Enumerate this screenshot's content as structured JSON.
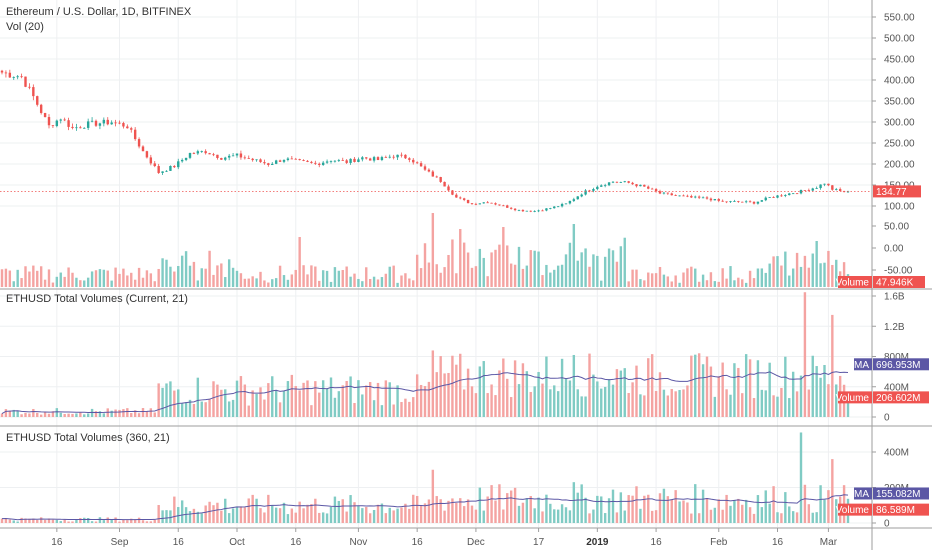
{
  "colors": {
    "up": "#26a69a",
    "down": "#ef5350",
    "up_vol": "#80cbc4",
    "down_vol": "#f4a3a1",
    "sma": "#5b57a5",
    "price_line": "#ef5350",
    "grid": "#eef0f2",
    "axis": "#555555"
  },
  "chart_data": [
    {
      "type": "candlestick",
      "title": "Ethereum / U.S. Dollar, 1D, BITFINEX",
      "volume_label": "Vol (20)",
      "ylim": [
        0,
        580
      ],
      "y_ticks": [
        "550.00",
        "500.00",
        "450.00",
        "400.00",
        "350.00",
        "300.00",
        "250.00",
        "200.00",
        "150.00",
        "100.00"
      ],
      "y_tick_values": [
        550,
        500,
        450,
        400,
        350,
        300,
        250,
        200,
        150,
        100
      ],
      "volume_ticks": [
        "50.00",
        "0.00",
        "-50.00"
      ],
      "volume_tick_values": [
        50,
        0,
        -50
      ],
      "last_price": 134.77,
      "last_price_label": "134.77",
      "last_volume_label": "47.946K",
      "volume_badge_text": "Volume",
      "price_anchors": [
        [
          0,
          418
        ],
        [
          5,
          408
        ],
        [
          8,
          360
        ],
        [
          12,
          290
        ],
        [
          15,
          310
        ],
        [
          18,
          285
        ],
        [
          22,
          295
        ],
        [
          28,
          300
        ],
        [
          32,
          290
        ],
        [
          36,
          230
        ],
        [
          40,
          180
        ],
        [
          44,
          195
        ],
        [
          48,
          225
        ],
        [
          52,
          230
        ],
        [
          56,
          215
        ],
        [
          60,
          220
        ],
        [
          64,
          210
        ],
        [
          68,
          200
        ],
        [
          72,
          212
        ],
        [
          76,
          205
        ],
        [
          80,
          200
        ],
        [
          84,
          210
        ],
        [
          88,
          205
        ],
        [
          92,
          215
        ],
        [
          96,
          210
        ],
        [
          100,
          220
        ],
        [
          104,
          215
        ],
        [
          108,
          185
        ],
        [
          112,
          160
        ],
        [
          116,
          120
        ],
        [
          120,
          105
        ],
        [
          124,
          110
        ],
        [
          128,
          100
        ],
        [
          132,
          90
        ],
        [
          136,
          88
        ],
        [
          140,
          95
        ],
        [
          144,
          105
        ],
        [
          148,
          130
        ],
        [
          152,
          148
        ],
        [
          156,
          158
        ],
        [
          160,
          155
        ],
        [
          164,
          145
        ],
        [
          168,
          130
        ],
        [
          172,
          125
        ],
        [
          176,
          120
        ],
        [
          180,
          118
        ],
        [
          184,
          110
        ],
        [
          188,
          110
        ],
        [
          192,
          108
        ],
        [
          196,
          120
        ],
        [
          200,
          128
        ],
        [
          204,
          135
        ],
        [
          208,
          145
        ],
        [
          210,
          155
        ],
        [
          212,
          140
        ],
        [
          214,
          135
        ],
        [
          216,
          134.77
        ]
      ]
    },
    {
      "type": "bar",
      "title": "ETHUSD Total Volumes (Current, 21)",
      "ylim": [
        0,
        1650
      ],
      "y_ticks": [
        "1.6B",
        "1.2B",
        "800M",
        "400M",
        "0"
      ],
      "y_tick_values": [
        1600,
        1200,
        800,
        400,
        0
      ],
      "sma_label": "SMA",
      "sma_value_label": "696.953M",
      "sma_value": 696.953,
      "volume_badge_text": "Volume",
      "volume_value_label": "206.602M",
      "volume_value": 206.602
    },
    {
      "type": "bar",
      "title": "ETHUSD Total Volumes (360, 21)",
      "ylim": [
        0,
        520
      ],
      "y_ticks": [
        "400M",
        "200M",
        "0"
      ],
      "y_tick_values": [
        400,
        200,
        0
      ],
      "sma_label": "SMA",
      "sma_value_label": "155.082M",
      "sma_value": 155.082,
      "volume_badge_text": "Volume",
      "volume_value_label": "86.589M",
      "volume_value": 86.589
    }
  ],
  "x_axis": {
    "labels": [
      {
        "text": "16",
        "index": 14
      },
      {
        "text": "Sep",
        "index": 30
      },
      {
        "text": "16",
        "index": 45
      },
      {
        "text": "Oct",
        "index": 60
      },
      {
        "text": "16",
        "index": 75
      },
      {
        "text": "Nov",
        "index": 91
      },
      {
        "text": "16",
        "index": 106
      },
      {
        "text": "Dec",
        "index": 121
      },
      {
        "text": "17",
        "index": 137
      },
      {
        "text": "2019",
        "index": 152,
        "bold": true
      },
      {
        "text": "16",
        "index": 167
      },
      {
        "text": "Feb",
        "index": 183
      },
      {
        "text": "16",
        "index": 198
      },
      {
        "text": "Mar",
        "index": 211
      }
    ]
  }
}
